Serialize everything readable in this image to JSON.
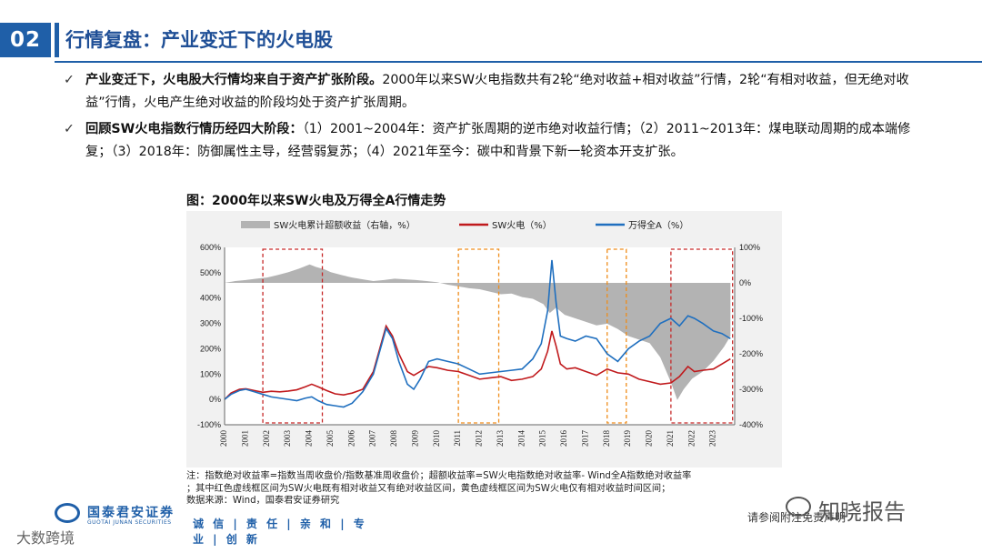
{
  "section": {
    "number": "02"
  },
  "page_title": "行情复盘：产业变迁下的火电股",
  "bullets": [
    {
      "bold": "产业变迁下，火电股大行情均来自于资产扩张阶段。",
      "text": "2000年以来SW火电指数共有2轮“绝对收益+相对收益”行情，2轮“有相对收益，但无绝对收益”行情，火电产生绝对收益的阶段均处于资产扩张周期。"
    },
    {
      "bold": "回顾SW火电指数行情历经四大阶段：",
      "text": "（1）2001~2004年：资产扩张周期的逆市绝对收益行情；（2）2011~2013年：煤电联动周期的成本端修复；（3）2018年：防御属性主导，经营弱复苏；（4）2021年至今：碳中和背景下新一轮资本开支扩张。"
    }
  ],
  "figure_title": "图：2000年以来SW火电及万得全A行情走势",
  "chart_data": {
    "type": "line",
    "legend": [
      "SW火电累计超额收益（右轴，%）",
      "SW火电（%）",
      "万得全A（%）"
    ],
    "x_ticks": [
      "2000",
      "2001",
      "2002",
      "2003",
      "2004",
      "2005",
      "2006",
      "2007",
      "2008",
      "2009",
      "2010",
      "2011",
      "2012",
      "2013",
      "2014",
      "2015",
      "2016",
      "2017",
      "2018",
      "2019",
      "2020",
      "2021",
      "2022",
      "2023"
    ],
    "x_range": [
      2000.0,
      2024.0
    ],
    "y_left": {
      "range": [
        -100,
        600
      ],
      "ticks": [
        "600%",
        "500%",
        "400%",
        "300%",
        "200%",
        "100%",
        "0%",
        "-100%"
      ]
    },
    "y_right": {
      "range": [
        -400,
        100
      ],
      "ticks": [
        "100%",
        "0%",
        "-100%",
        "-200%",
        "-300%",
        "-400%"
      ]
    },
    "series": [
      {
        "name": "SW火电累计超额收益（右轴，%）",
        "axis": "right",
        "style": "area",
        "color": "#b3b3b3",
        "x": [
          2000.0,
          2000.5,
          2001.0,
          2001.5,
          2002.0,
          2002.5,
          2003.0,
          2003.5,
          2004.0,
          2004.3,
          2004.7,
          2005.0,
          2005.5,
          2006.0,
          2006.5,
          2007.0,
          2007.5,
          2008.0,
          2008.5,
          2009.0,
          2009.5,
          2010.0,
          2010.5,
          2011.0,
          2011.5,
          2012.0,
          2012.5,
          2013.0,
          2013.5,
          2014.0,
          2014.5,
          2015.0,
          2015.3,
          2015.6,
          2016.0,
          2016.5,
          2017.0,
          2017.5,
          2018.0,
          2018.5,
          2019.0,
          2019.5,
          2020.0,
          2020.5,
          2021.0,
          2021.3,
          2021.6,
          2022.0,
          2022.5,
          2023.0,
          2023.5,
          2023.8
        ],
        "y": [
          0,
          5,
          8,
          12,
          15,
          22,
          30,
          40,
          52,
          45,
          38,
          30,
          22,
          15,
          10,
          5,
          8,
          12,
          10,
          8,
          5,
          2,
          -5,
          -10,
          -15,
          -18,
          -25,
          -32,
          -30,
          -40,
          -45,
          -60,
          -85,
          -70,
          -90,
          -100,
          -110,
          -120,
          -115,
          -130,
          -150,
          -160,
          -170,
          -210,
          -280,
          -330,
          -300,
          -270,
          -250,
          -220,
          -180,
          -150
        ]
      },
      {
        "name": "SW火电（%）",
        "axis": "left",
        "style": "line",
        "color": "#c0191c",
        "x": [
          2000.0,
          2000.3,
          2000.7,
          2001.0,
          2001.4,
          2001.8,
          2002.2,
          2002.6,
          2003.0,
          2003.4,
          2003.8,
          2004.1,
          2004.4,
          2004.8,
          2005.2,
          2005.6,
          2006.0,
          2006.5,
          2007.0,
          2007.3,
          2007.6,
          2007.9,
          2008.2,
          2008.6,
          2008.9,
          2009.2,
          2009.6,
          2010.0,
          2010.5,
          2011.0,
          2011.5,
          2012.0,
          2012.5,
          2013.0,
          2013.5,
          2014.0,
          2014.5,
          2014.9,
          2015.2,
          2015.4,
          2015.6,
          2015.8,
          2016.1,
          2016.5,
          2017.0,
          2017.5,
          2018.0,
          2018.5,
          2019.0,
          2019.5,
          2020.0,
          2020.5,
          2021.0,
          2021.4,
          2021.8,
          2022.1,
          2022.5,
          2023.0,
          2023.4,
          2023.8
        ],
        "y": [
          0,
          25,
          40,
          42,
          35,
          28,
          32,
          30,
          33,
          38,
          50,
          60,
          50,
          35,
          22,
          18,
          25,
          40,
          110,
          200,
          290,
          250,
          180,
          110,
          95,
          110,
          130,
          125,
          115,
          110,
          95,
          80,
          85,
          90,
          75,
          80,
          90,
          120,
          190,
          270,
          210,
          140,
          120,
          125,
          110,
          95,
          120,
          105,
          100,
          80,
          70,
          60,
          65,
          90,
          130,
          110,
          115,
          120,
          140,
          160
        ]
      },
      {
        "name": "万得全A（%）",
        "axis": "left",
        "style": "line",
        "color": "#1f6fbf",
        "x": [
          2000.0,
          2000.3,
          2000.7,
          2001.0,
          2001.4,
          2001.8,
          2002.2,
          2002.6,
          2003.0,
          2003.4,
          2003.8,
          2004.1,
          2004.4,
          2004.8,
          2005.2,
          2005.6,
          2006.0,
          2006.5,
          2007.0,
          2007.3,
          2007.6,
          2007.9,
          2008.2,
          2008.6,
          2008.9,
          2009.2,
          2009.6,
          2010.0,
          2010.5,
          2011.0,
          2011.5,
          2012.0,
          2012.5,
          2013.0,
          2013.5,
          2014.0,
          2014.5,
          2014.9,
          2015.2,
          2015.4,
          2015.6,
          2015.8,
          2016.1,
          2016.5,
          2017.0,
          2017.5,
          2018.0,
          2018.5,
          2019.0,
          2019.5,
          2020.0,
          2020.5,
          2021.0,
          2021.4,
          2021.8,
          2022.1,
          2022.5,
          2023.0,
          2023.4,
          2023.8
        ],
        "y": [
          0,
          20,
          35,
          40,
          30,
          20,
          10,
          5,
          0,
          -5,
          5,
          10,
          -5,
          -20,
          -25,
          -30,
          -15,
          30,
          100,
          190,
          280,
          240,
          150,
          60,
          40,
          80,
          150,
          160,
          150,
          140,
          120,
          100,
          105,
          110,
          115,
          120,
          160,
          220,
          350,
          550,
          380,
          250,
          240,
          230,
          250,
          240,
          180,
          150,
          200,
          230,
          250,
          300,
          320,
          290,
          330,
          320,
          300,
          270,
          260,
          240
        ]
      }
    ]
  },
  "notes": [
    "注：指数绝对收益率=指数当周收盘价/指数基准周收盘价；超额收益率=SW火电指数绝对收益率- Wind全A指数绝对收益率",
    "；其中红色虚线框区间为SW火电既有相对收益又有绝对收益区间，黄色虚线框区间为SW火电仅有相对收益时间区间；",
    "数据来源：Wind，国泰君安证券研究"
  ],
  "highlight_periods": {
    "red": [
      [
        2001.8,
        2004.6
      ],
      [
        2021.0,
        2023.9
      ]
    ],
    "orange": [
      [
        2011.0,
        2012.9
      ],
      [
        2018.0,
        2018.9
      ]
    ],
    "colors": {
      "red": "#c62828",
      "orange": "#ef8c1a"
    }
  },
  "footer": {
    "company_cn": "国泰君安证券",
    "company_en": "GUOTAI JUNAN SECURITIES",
    "slogan": "诚 信 | 责 任 | 亲 和 | 专 业 | 创 新",
    "disclaimer": "请参阅附注免责声明",
    "watermark_right": "知晓报告",
    "watermark_left": "大数跨境"
  }
}
